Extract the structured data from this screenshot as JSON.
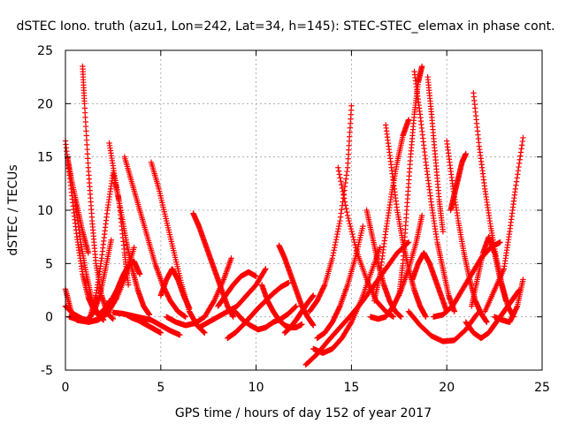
{
  "chart_data": {
    "type": "scatter",
    "title": "dSTEC Iono. truth (azu1, Lon=242, Lat=34, h=145): STEC-STEC_elemax in phase cont.",
    "xlabel": "GPS time / hours of day 152 of year 2017",
    "ylabel": "dSTEC  / TECUs",
    "xlim": [
      0,
      25
    ],
    "ylim": [
      -5,
      25
    ],
    "x_ticks": [
      "0",
      "5",
      "10",
      "15",
      "20",
      "25"
    ],
    "y_ticks": [
      "-5",
      "0",
      "5",
      "10",
      "15",
      "20",
      "25"
    ],
    "grid": true,
    "marker": "+",
    "color": "#ff0000",
    "series": [
      {
        "x": [
          0.0,
          0.3,
          0.6,
          0.9,
          1.2,
          1.5,
          1.8,
          2.1,
          2.3
        ],
        "y": [
          16.5,
          12.0,
          7.5,
          4.0,
          1.8,
          0.6,
          0.2,
          0.6,
          1.5
        ]
      },
      {
        "x": [
          0.5,
          0.8,
          1.1,
          1.4,
          1.7,
          2.0
        ],
        "y": [
          11.0,
          7.0,
          4.0,
          1.5,
          0.2,
          -0.3
        ]
      },
      {
        "x": [
          0.9,
          1.0,
          1.2,
          1.4,
          1.6,
          1.9,
          2.2,
          2.5
        ],
        "y": [
          23.5,
          20.0,
          14.0,
          9.0,
          5.0,
          2.0,
          0.3,
          -0.2
        ]
      },
      {
        "x": [
          0.0,
          0.3,
          0.6,
          0.9,
          1.2,
          1.5,
          1.8,
          2.1,
          2.4
        ],
        "y": [
          2.6,
          0.5,
          -0.3,
          -0.4,
          -0.2,
          0.5,
          2.0,
          4.5,
          7.2
        ]
      },
      {
        "x": [
          0.2,
          0.7,
          1.2,
          1.7,
          2.2,
          2.7,
          3.2,
          3.6
        ],
        "y": [
          0.0,
          -0.3,
          -0.5,
          -0.3,
          0.3,
          1.8,
          4.0,
          6.5
        ]
      },
      {
        "x": [
          0.0,
          0.4,
          0.9,
          1.4,
          1.8
        ],
        "y": [
          1.0,
          0.3,
          -0.2,
          -0.4,
          -0.2
        ]
      },
      {
        "x": [
          0.1,
          0.3,
          0.6,
          0.9,
          1.2
        ],
        "y": [
          15.0,
          13.0,
          10.5,
          8.0,
          6.0
        ]
      },
      {
        "x": [
          1.3,
          1.6,
          1.9,
          2.2,
          2.5,
          2.8,
          3.1,
          3.3
        ],
        "y": [
          0.0,
          2.0,
          5.5,
          10.0,
          13.5,
          11.0,
          6.0,
          3.0
        ]
      },
      {
        "x": [
          2.3,
          2.6,
          2.9,
          3.2,
          3.5,
          3.8,
          4.1,
          4.4
        ],
        "y": [
          16.3,
          13.0,
          10.0,
          7.0,
          4.5,
          2.5,
          1.0,
          0.2
        ]
      },
      {
        "x": [
          1.8,
          2.1,
          2.4,
          2.7,
          3.0,
          3.3,
          3.6,
          3.9
        ],
        "y": [
          0.3,
          0.8,
          1.5,
          2.5,
          3.8,
          4.8,
          5.2,
          4.0
        ]
      },
      {
        "x": [
          3.1,
          3.5,
          3.9,
          4.3,
          4.7,
          5.1,
          5.5,
          5.9,
          6.3
        ],
        "y": [
          15.0,
          12.5,
          10.0,
          7.5,
          5.0,
          3.0,
          1.5,
          0.5,
          0.0
        ]
      },
      {
        "x": [
          2.5,
          3.0,
          3.5,
          4.0,
          4.5,
          5.0,
          5.5,
          6.0
        ],
        "y": [
          0.4,
          0.3,
          0.1,
          -0.1,
          -0.3,
          -0.8,
          -1.3,
          -1.7
        ]
      },
      {
        "x": [
          3.2,
          3.5,
          3.8,
          4.1,
          4.4,
          4.7,
          5.0
        ],
        "y": [
          0.2,
          -0.1,
          -0.3,
          -0.6,
          -0.9,
          -1.2,
          -1.5
        ]
      },
      {
        "x": [
          4.5,
          4.9,
          5.3,
          5.7,
          6.1,
          6.5,
          6.9,
          7.3
        ],
        "y": [
          14.5,
          12.0,
          9.0,
          6.0,
          3.0,
          0.5,
          -0.8,
          -1.5
        ]
      },
      {
        "x": [
          5.3,
          5.8,
          6.3,
          6.8,
          7.3,
          7.8,
          8.3,
          8.7
        ],
        "y": [
          0.0,
          -0.5,
          -0.8,
          -0.6,
          0.0,
          1.5,
          3.5,
          5.5
        ]
      },
      {
        "x": [
          5.0,
          5.3,
          5.6,
          5.9,
          6.2,
          6.5
        ],
        "y": [
          2.0,
          3.5,
          4.5,
          3.5,
          2.0,
          0.8
        ]
      },
      {
        "x": [
          6.7,
          7.0,
          7.3,
          7.6,
          7.9,
          8.2,
          8.5,
          8.8
        ],
        "y": [
          9.7,
          8.5,
          7.0,
          5.5,
          4.0,
          2.5,
          1.0,
          0.0
        ]
      },
      {
        "x": [
          7.0,
          7.5,
          8.0,
          8.5,
          9.0,
          9.5,
          10.0,
          10.5
        ],
        "y": [
          -1.0,
          -0.5,
          0.0,
          0.5,
          1.0,
          2.0,
          3.0,
          4.5
        ]
      },
      {
        "x": [
          8.5,
          8.9,
          9.3,
          9.7,
          10.1,
          10.5,
          10.9,
          11.3,
          11.7
        ],
        "y": [
          -2.0,
          -1.5,
          -0.8,
          0.0,
          0.8,
          1.5,
          2.2,
          2.8,
          3.2
        ]
      },
      {
        "x": [
          8.0,
          8.4,
          8.8,
          9.2,
          9.6,
          10.0
        ],
        "y": [
          1.0,
          2.0,
          3.0,
          3.8,
          4.2,
          3.8
        ]
      },
      {
        "x": [
          8.9,
          9.3,
          9.7,
          10.1,
          10.5,
          10.9,
          11.3,
          11.7,
          12.1
        ],
        "y": [
          0.5,
          -0.3,
          -0.8,
          -1.2,
          -1.0,
          -0.5,
          -0.2,
          0.3,
          1.0
        ]
      },
      {
        "x": [
          10.3,
          10.6,
          10.9,
          11.2,
          11.5,
          11.8,
          12.1,
          12.4
        ],
        "y": [
          3.0,
          1.5,
          0.5,
          -0.3,
          -0.8,
          -1.0,
          -1.0,
          -0.7
        ]
      },
      {
        "x": [
          11.2,
          11.5,
          11.8,
          12.1,
          12.4,
          12.7,
          13.0
        ],
        "y": [
          6.7,
          5.5,
          4.0,
          2.5,
          1.0,
          0.0,
          -0.8
        ]
      },
      {
        "x": [
          11.5,
          11.8,
          12.1,
          12.4,
          12.7,
          13.0
        ],
        "y": [
          -1.5,
          -1.0,
          -0.3,
          0.5,
          1.3,
          2.0
        ]
      },
      {
        "x": [
          12.6,
          13.2,
          13.8,
          14.4,
          15.0,
          15.6,
          16.2,
          16.8,
          17.4,
          18.0
        ],
        "y": [
          -4.5,
          -3.5,
          -2.2,
          -1.0,
          0.2,
          1.5,
          3.0,
          4.5,
          6.0,
          7.0
        ]
      },
      {
        "x": [
          13.0,
          13.5,
          14.0,
          14.5,
          15.0,
          15.5,
          16.0,
          16.5
        ],
        "y": [
          -3.0,
          -3.4,
          -3.0,
          -2.0,
          -0.5,
          1.5,
          4.0,
          6.5
        ]
      },
      {
        "x": [
          12.8,
          13.2,
          13.6,
          14.0,
          14.4,
          14.8,
          15.0
        ],
        "y": [
          0.5,
          1.5,
          3.0,
          5.5,
          9.0,
          14.0,
          19.8
        ]
      },
      {
        "x": [
          13.2,
          13.6,
          14.0,
          14.4,
          14.8,
          15.2,
          15.6
        ],
        "y": [
          -2.0,
          -1.5,
          -0.5,
          1.0,
          3.0,
          5.5,
          8.5
        ]
      },
      {
        "x": [
          14.3,
          14.8,
          15.3,
          15.8,
          16.3,
          16.8,
          17.2
        ],
        "y": [
          14.0,
          9.5,
          6.0,
          3.5,
          1.5,
          0.5,
          0.0
        ]
      },
      {
        "x": [
          15.8,
          16.1,
          16.4,
          16.7,
          17.0,
          17.3,
          17.6
        ],
        "y": [
          10.0,
          7.5,
          5.0,
          3.0,
          1.5,
          0.5,
          0.0
        ]
      },
      {
        "x": [
          16.0,
          16.4,
          16.8,
          17.2,
          17.6,
          18.0,
          18.4,
          18.7
        ],
        "y": [
          0.0,
          -0.2,
          0.0,
          1.0,
          2.5,
          4.5,
          7.0,
          9.5
        ]
      },
      {
        "x": [
          16.2,
          16.5,
          16.8,
          17.1,
          17.4,
          17.7,
          18.0
        ],
        "y": [
          1.5,
          4.0,
          8.0,
          11.5,
          14.5,
          17.0,
          18.5
        ]
      },
      {
        "x": [
          16.8,
          17.1,
          17.4,
          17.7,
          18.0,
          18.3,
          18.6,
          18.9
        ],
        "y": [
          18.0,
          14.0,
          10.0,
          7.0,
          4.5,
          2.5,
          1.0,
          0.0
        ]
      },
      {
        "x": [
          17.5,
          17.7,
          17.9,
          18.1,
          18.3,
          18.5,
          18.7
        ],
        "y": [
          2.0,
          5.0,
          10.0,
          15.0,
          19.0,
          22.0,
          23.5
        ]
      },
      {
        "x": [
          18.3,
          18.6,
          18.9,
          19.2,
          19.5,
          19.8,
          20.1,
          20.4
        ],
        "y": [
          23.0,
          19.0,
          14.5,
          10.5,
          7.0,
          4.5,
          2.0,
          0.5
        ]
      },
      {
        "x": [
          18.2,
          18.5,
          18.8,
          19.1,
          19.4,
          19.7,
          20.0
        ],
        "y": [
          3.5,
          5.0,
          6.0,
          5.0,
          3.5,
          2.0,
          0.5
        ]
      },
      {
        "x": [
          19.0,
          19.2,
          19.4,
          19.6,
          19.8
        ],
        "y": [
          22.5,
          19.0,
          15.0,
          11.0,
          8.0
        ]
      },
      {
        "x": [
          18.0,
          18.6,
          19.2,
          19.8,
          20.4,
          21.0,
          21.6
        ],
        "y": [
          0.5,
          -0.8,
          -1.8,
          -2.3,
          -2.2,
          -1.2,
          0.3
        ]
      },
      {
        "x": [
          19.3,
          19.8,
          20.3,
          20.8,
          21.3,
          21.8,
          22.3,
          22.8
        ],
        "y": [
          0.0,
          0.2,
          1.0,
          2.5,
          4.0,
          5.5,
          6.5,
          7.0
        ]
      },
      {
        "x": [
          20.0,
          20.3,
          20.6,
          20.9,
          21.2,
          21.5,
          21.8,
          22.1
        ],
        "y": [
          16.5,
          12.5,
          9.0,
          6.0,
          3.5,
          1.5,
          0.3,
          -0.5
        ]
      },
      {
        "x": [
          20.2,
          20.4,
          20.6,
          20.8,
          21.0
        ],
        "y": [
          10.0,
          11.5,
          13.0,
          14.5,
          15.3
        ]
      },
      {
        "x": [
          21.4,
          21.7,
          22.0,
          22.3,
          22.6,
          22.9,
          23.2,
          23.5
        ],
        "y": [
          21.0,
          16.0,
          12.0,
          8.5,
          5.5,
          3.0,
          1.0,
          0.0
        ]
      },
      {
        "x": [
          21.3,
          21.6,
          21.9,
          22.2,
          22.5,
          22.8,
          23.1
        ],
        "y": [
          1.0,
          3.5,
          6.0,
          7.5,
          6.0,
          3.5,
          1.5
        ]
      },
      {
        "x": [
          21.0,
          21.4,
          21.8,
          22.2,
          22.6,
          23.0,
          23.4,
          23.8
        ],
        "y": [
          -0.5,
          -1.5,
          -2.0,
          -1.5,
          -0.5,
          0.5,
          1.5,
          2.5
        ]
      },
      {
        "x": [
          22.0,
          22.5,
          23.0,
          23.3,
          23.6,
          24.0
        ],
        "y": [
          0.5,
          2.5,
          4.5,
          8.0,
          12.0,
          16.8
        ]
      },
      {
        "x": [
          22.5,
          22.9,
          23.3,
          23.7,
          24.0
        ],
        "y": [
          0.0,
          -0.3,
          -0.5,
          1.0,
          3.5
        ]
      }
    ]
  }
}
